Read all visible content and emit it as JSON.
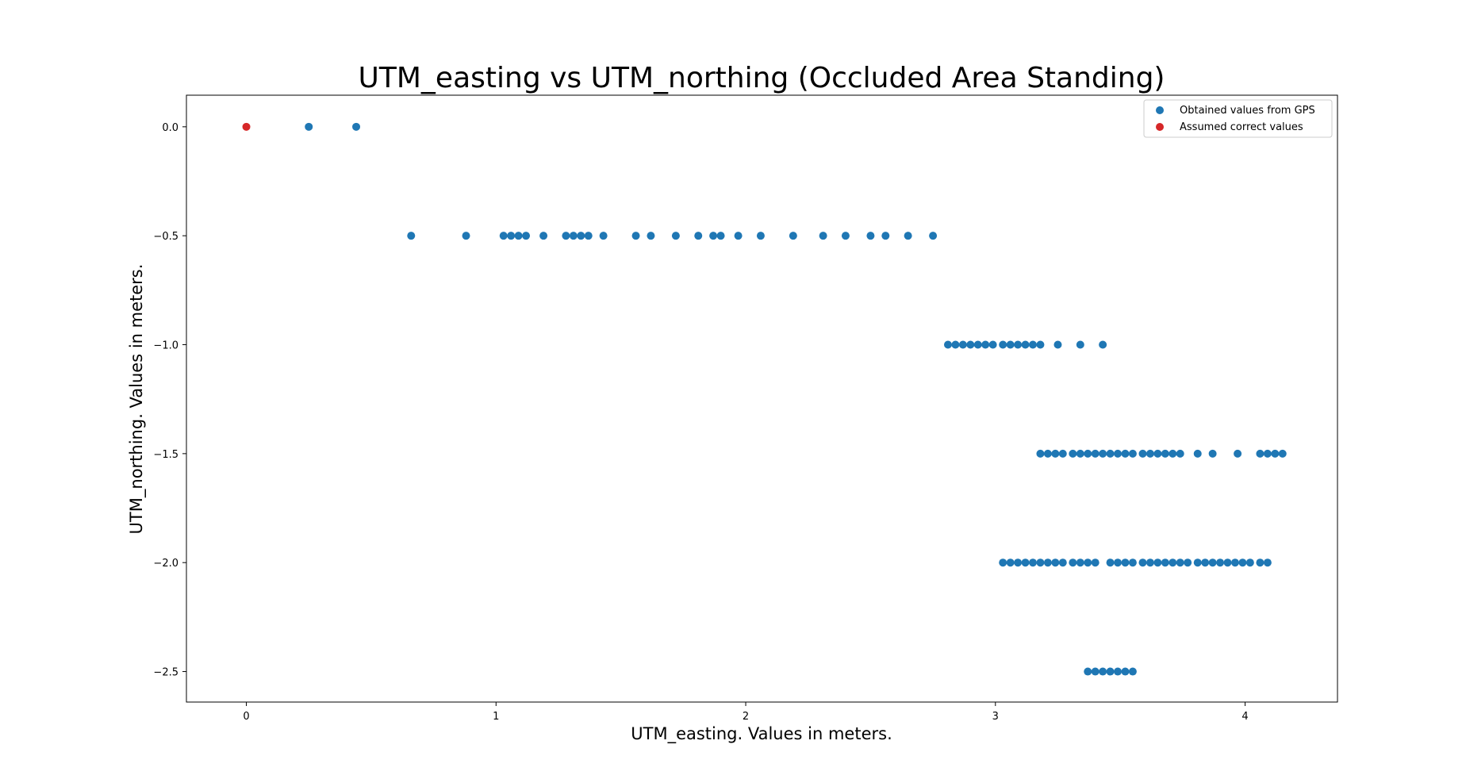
{
  "chart_data": {
    "type": "scatter",
    "title": "UTM_easting vs UTM_northing (Occluded Area Standing)",
    "xlabel": "UTM_easting. Values in meters.",
    "ylabel": "UTM_northing. Values in meters.",
    "xlim": [
      -0.24,
      4.37
    ],
    "ylim": [
      -2.64,
      0.145
    ],
    "xticks": [
      0,
      1,
      2,
      3,
      4
    ],
    "xtick_labels": [
      "0",
      "1",
      "2",
      "3",
      "4"
    ],
    "yticks": [
      0.0,
      -0.5,
      -1.0,
      -1.5,
      -2.0,
      -2.5
    ],
    "ytick_labels": [
      "0.0",
      "−0.5",
      "−1.0",
      "−1.5",
      "−2.0",
      "−2.5"
    ],
    "grid": false,
    "legend_position": "top-right",
    "series": [
      {
        "name": "Obtained values from GPS",
        "color": "#1f77b4",
        "points": [
          [
            0.25,
            0.0
          ],
          [
            0.44,
            0.0
          ],
          [
            0.66,
            -0.5
          ],
          [
            0.88,
            -0.5
          ],
          [
            1.03,
            -0.5
          ],
          [
            1.06,
            -0.5
          ],
          [
            1.09,
            -0.5
          ],
          [
            1.12,
            -0.5
          ],
          [
            1.19,
            -0.5
          ],
          [
            1.28,
            -0.5
          ],
          [
            1.31,
            -0.5
          ],
          [
            1.34,
            -0.5
          ],
          [
            1.37,
            -0.5
          ],
          [
            1.43,
            -0.5
          ],
          [
            1.56,
            -0.5
          ],
          [
            1.62,
            -0.5
          ],
          [
            1.72,
            -0.5
          ],
          [
            1.81,
            -0.5
          ],
          [
            1.87,
            -0.5
          ],
          [
            1.9,
            -0.5
          ],
          [
            1.97,
            -0.5
          ],
          [
            2.06,
            -0.5
          ],
          [
            2.19,
            -0.5
          ],
          [
            2.31,
            -0.5
          ],
          [
            2.4,
            -0.5
          ],
          [
            2.5,
            -0.5
          ],
          [
            2.56,
            -0.5
          ],
          [
            2.65,
            -0.5
          ],
          [
            2.75,
            -0.5
          ],
          [
            2.81,
            -1.0
          ],
          [
            2.84,
            -1.0
          ],
          [
            2.87,
            -1.0
          ],
          [
            2.9,
            -1.0
          ],
          [
            2.93,
            -1.0
          ],
          [
            2.96,
            -1.0
          ],
          [
            2.99,
            -1.0
          ],
          [
            3.03,
            -1.0
          ],
          [
            3.06,
            -1.0
          ],
          [
            3.09,
            -1.0
          ],
          [
            3.12,
            -1.0
          ],
          [
            3.15,
            -1.0
          ],
          [
            3.18,
            -1.0
          ],
          [
            3.25,
            -1.0
          ],
          [
            3.34,
            -1.0
          ],
          [
            3.43,
            -1.0
          ],
          [
            3.18,
            -1.5
          ],
          [
            3.21,
            -1.5
          ],
          [
            3.24,
            -1.5
          ],
          [
            3.27,
            -1.5
          ],
          [
            3.31,
            -1.5
          ],
          [
            3.34,
            -1.5
          ],
          [
            3.37,
            -1.5
          ],
          [
            3.4,
            -1.5
          ],
          [
            3.43,
            -1.5
          ],
          [
            3.46,
            -1.5
          ],
          [
            3.49,
            -1.5
          ],
          [
            3.52,
            -1.5
          ],
          [
            3.55,
            -1.5
          ],
          [
            3.59,
            -1.5
          ],
          [
            3.62,
            -1.5
          ],
          [
            3.65,
            -1.5
          ],
          [
            3.68,
            -1.5
          ],
          [
            3.71,
            -1.5
          ],
          [
            3.74,
            -1.5
          ],
          [
            3.81,
            -1.5
          ],
          [
            3.87,
            -1.5
          ],
          [
            3.97,
            -1.5
          ],
          [
            4.06,
            -1.5
          ],
          [
            4.09,
            -1.5
          ],
          [
            4.12,
            -1.5
          ],
          [
            4.15,
            -1.5
          ],
          [
            3.03,
            -2.0
          ],
          [
            3.06,
            -2.0
          ],
          [
            3.09,
            -2.0
          ],
          [
            3.12,
            -2.0
          ],
          [
            3.15,
            -2.0
          ],
          [
            3.18,
            -2.0
          ],
          [
            3.21,
            -2.0
          ],
          [
            3.24,
            -2.0
          ],
          [
            3.27,
            -2.0
          ],
          [
            3.31,
            -2.0
          ],
          [
            3.34,
            -2.0
          ],
          [
            3.37,
            -2.0
          ],
          [
            3.4,
            -2.0
          ],
          [
            3.46,
            -2.0
          ],
          [
            3.49,
            -2.0
          ],
          [
            3.52,
            -2.0
          ],
          [
            3.55,
            -2.0
          ],
          [
            3.59,
            -2.0
          ],
          [
            3.62,
            -2.0
          ],
          [
            3.65,
            -2.0
          ],
          [
            3.68,
            -2.0
          ],
          [
            3.71,
            -2.0
          ],
          [
            3.74,
            -2.0
          ],
          [
            3.77,
            -2.0
          ],
          [
            3.81,
            -2.0
          ],
          [
            3.84,
            -2.0
          ],
          [
            3.87,
            -2.0
          ],
          [
            3.9,
            -2.0
          ],
          [
            3.93,
            -2.0
          ],
          [
            3.96,
            -2.0
          ],
          [
            3.99,
            -2.0
          ],
          [
            4.02,
            -2.0
          ],
          [
            4.06,
            -2.0
          ],
          [
            4.09,
            -2.0
          ],
          [
            3.37,
            -2.5
          ],
          [
            3.4,
            -2.5
          ],
          [
            3.43,
            -2.5
          ],
          [
            3.46,
            -2.5
          ],
          [
            3.49,
            -2.5
          ],
          [
            3.52,
            -2.5
          ],
          [
            3.55,
            -2.5
          ]
        ]
      },
      {
        "name": "Assumed correct values",
        "color": "#d62728",
        "points": [
          [
            0.0,
            0.0
          ]
        ]
      }
    ]
  }
}
